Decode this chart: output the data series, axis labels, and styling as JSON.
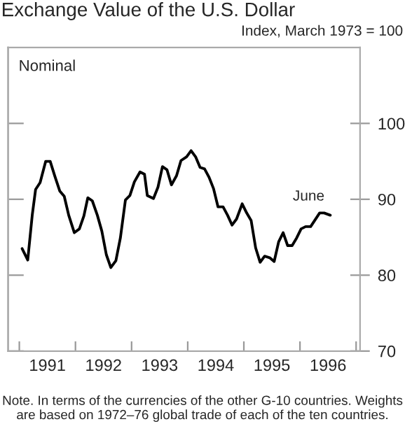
{
  "chart_data": {
    "type": "line",
    "title": "Exchange Value of the U.S. Dollar",
    "ylabel": "Index, March 1973 = 100",
    "annotations": [
      "Nominal",
      {
        "text": "June",
        "x": 1996.54,
        "y": 87.9
      },
      "Note. In terms of the currencies of the other G-10 countries. Weights are based on 1972–76 global trade of each of the ten countries."
    ],
    "x": [
      1991.05,
      1991.15,
      1991.23,
      1991.29,
      1991.37,
      1991.47,
      1991.55,
      1991.63,
      1991.72,
      1991.8,
      1991.88,
      1991.98,
      1992.07,
      1992.15,
      1992.22,
      1992.3,
      1992.39,
      1992.47,
      1992.55,
      1992.63,
      1992.72,
      1992.8,
      1992.89,
      1992.97,
      1993.05,
      1993.15,
      1993.23,
      1993.28,
      1993.39,
      1993.47,
      1993.55,
      1993.63,
      1993.71,
      1993.8,
      1993.88,
      1993.98,
      1994.06,
      1994.14,
      1994.22,
      1994.3,
      1994.38,
      1994.46,
      1994.54,
      1994.63,
      1994.71,
      1994.79,
      1994.87,
      1994.97,
      1995.05,
      1995.13,
      1995.21,
      1995.29,
      1995.37,
      1995.46,
      1995.54,
      1995.62,
      1995.7,
      1995.78,
      1995.86,
      1995.94,
      1996.02,
      1996.1,
      1996.19,
      1996.27,
      1996.35,
      1996.43,
      1996.54
    ],
    "series": [
      {
        "color": "#000000",
        "values": [
          83.5,
          82.0,
          87.9,
          91.3,
          92.2,
          95.0,
          95.0,
          93.1,
          91.1,
          90.4,
          87.9,
          85.6,
          86.1,
          87.8,
          90.2,
          89.8,
          87.9,
          85.8,
          82.7,
          81.0,
          81.9,
          84.9,
          89.9,
          90.5,
          92.3,
          93.6,
          93.3,
          90.5,
          90.1,
          91.6,
          94.3,
          93.9,
          91.9,
          93.1,
          95.1,
          95.6,
          96.4,
          95.6,
          94.2,
          94.0,
          92.9,
          91.4,
          89.0,
          89.0,
          87.9,
          86.6,
          87.4,
          89.4,
          88.2,
          87.2,
          83.6,
          81.7,
          82.5,
          82.3,
          81.8,
          84.4,
          85.6,
          83.9,
          83.9,
          84.9,
          86.1,
          86.4,
          86.4,
          87.3,
          88.2,
          88.2,
          87.9
        ]
      }
    ],
    "xlim": [
      1990.8,
      1997.07
    ],
    "xticks": [
      {
        "value": 1991,
        "label": null
      },
      {
        "value": 1991.5,
        "label": "1991"
      },
      {
        "value": 1992,
        "label": null
      },
      {
        "value": 1992.5,
        "label": "1992"
      },
      {
        "value": 1993,
        "label": null
      },
      {
        "value": 1993.5,
        "label": "1993"
      },
      {
        "value": 1994,
        "label": null
      },
      {
        "value": 1994.5,
        "label": "1994"
      },
      {
        "value": 1995,
        "label": null
      },
      {
        "value": 1995.5,
        "label": "1995"
      },
      {
        "value": 1996,
        "label": null
      },
      {
        "value": 1996.5,
        "label": "1996"
      },
      {
        "value": 1997,
        "label": null
      }
    ],
    "ylim": [
      70,
      110
    ],
    "yticks": [
      70,
      80,
      90,
      100
    ],
    "grid": false,
    "line_style": "solid",
    "marker": "none"
  }
}
